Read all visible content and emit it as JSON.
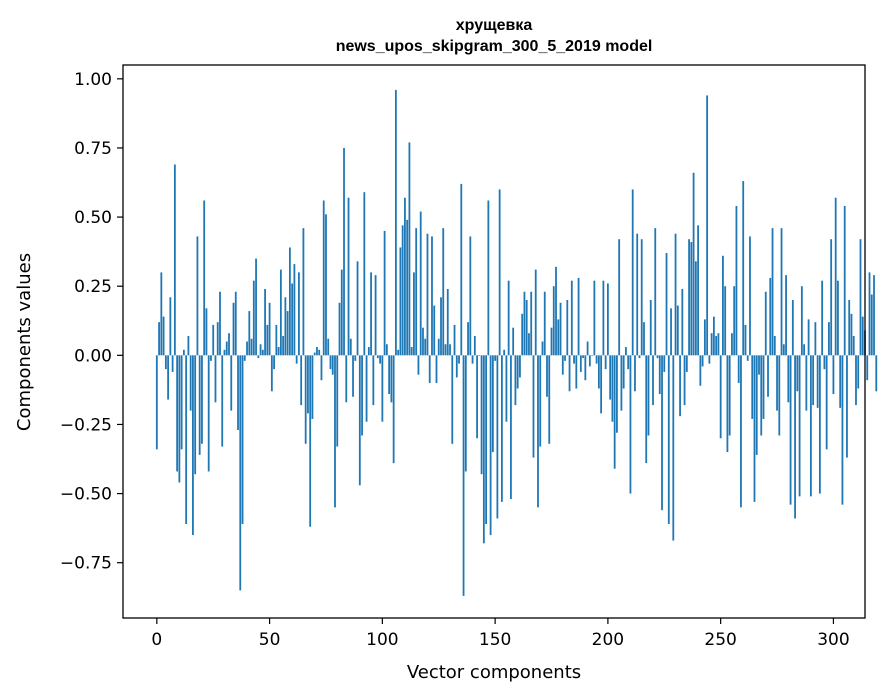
{
  "chart_data": {
    "type": "bar",
    "title": "хрущевка",
    "subtitle": "news_upos_skipgram_300_5_2019 model",
    "xlabel": "Vector components",
    "ylabel": "Components values",
    "xlim": [
      -15,
      314
    ],
    "ylim": [
      -0.95,
      1.05
    ],
    "x_ticks": [
      0,
      50,
      100,
      150,
      200,
      250,
      300
    ],
    "x_tick_labels": [
      "0",
      "50",
      "100",
      "150",
      "200",
      "250",
      "300"
    ],
    "y_ticks": [
      -0.75,
      -0.5,
      -0.25,
      0.0,
      0.25,
      0.5,
      0.75,
      1.0
    ],
    "y_tick_labels": [
      "−0.75",
      "−0.50",
      "−0.25",
      "0.00",
      "0.25",
      "0.50",
      "0.75",
      "1.00"
    ],
    "series": [
      {
        "name": "components",
        "color": "#1f77b4",
        "values": [
          -0.34,
          0.12,
          0.3,
          0.14,
          -0.05,
          -0.16,
          0.21,
          -0.06,
          0.69,
          -0.42,
          -0.46,
          -0.34,
          0.02,
          -0.61,
          0.07,
          -0.2,
          -0.65,
          -0.43,
          0.43,
          -0.36,
          -0.32,
          0.56,
          0.17,
          -0.42,
          -0.02,
          0.11,
          -0.17,
          0.12,
          0.23,
          -0.33,
          0.02,
          0.05,
          0.08,
          -0.2,
          0.19,
          0.23,
          -0.27,
          -0.85,
          -0.61,
          -0.02,
          0.05,
          0.16,
          0.06,
          0.27,
          0.35,
          -0.01,
          0.04,
          0.02,
          0.24,
          0.11,
          0.19,
          -0.13,
          -0.05,
          0.11,
          0.03,
          0.31,
          0.07,
          0.21,
          0.16,
          0.39,
          0.26,
          0.33,
          -0.03,
          0.3,
          -0.18,
          0.46,
          -0.32,
          -0.21,
          -0.62,
          -0.23,
          0.01,
          0.03,
          0.02,
          -0.09,
          0.56,
          0.51,
          0.06,
          -0.05,
          -0.07,
          -0.55,
          -0.33,
          0.19,
          0.31,
          0.75,
          -0.17,
          0.57,
          0.06,
          -0.15,
          -0.02,
          0.34,
          -0.47,
          -0.29,
          0.59,
          -0.24,
          0.03,
          0.3,
          -0.18,
          0.29,
          -0.01,
          -0.03,
          -0.24,
          0.45,
          0.04,
          -0.14,
          -0.17,
          -0.39,
          0.96,
          0.02,
          0.39,
          0.47,
          0.57,
          0.49,
          0.77,
          0.03,
          0.3,
          0.46,
          -0.07,
          0.52,
          0.1,
          0.06,
          0.44,
          -0.1,
          0.43,
          0.18,
          -0.1,
          0.06,
          0.21,
          0.46,
          0.04,
          0.24,
          0.04,
          -0.32,
          0.11,
          -0.08,
          -0.03,
          0.62,
          -0.87,
          -0.42,
          0.12,
          0.43,
          -0.03,
          0.07,
          -0.3,
          0.0,
          -0.43,
          -0.68,
          -0.61,
          0.56,
          -0.65,
          -0.35,
          -0.02,
          -0.59,
          0.6,
          -0.53,
          0.02,
          -0.24,
          0.27,
          -0.52,
          0.1,
          -0.18,
          -0.12,
          -0.08,
          0.15,
          0.23,
          0.2,
          0.08,
          0.23,
          -0.37,
          0.31,
          -0.55,
          -0.33,
          0.05,
          0.23,
          -0.15,
          -0.32,
          0.1,
          0.25,
          0.32,
          0.13,
          0.19,
          -0.07,
          -0.02,
          0.2,
          -0.13,
          0.27,
          -0.03,
          -0.12,
          0.28,
          -0.06,
          -0.01,
          -0.09,
          0.05,
          -0.04,
          0.0,
          0.27,
          -0.03,
          -0.12,
          -0.21,
          0.27,
          -0.05,
          0.26,
          -0.16,
          -0.24,
          -0.41,
          -0.28,
          0.42,
          -0.2,
          -0.12,
          0.03,
          -0.05,
          -0.5,
          0.6,
          -0.13,
          0.44,
          -0.01,
          0.42,
          0.12,
          -0.39,
          -0.29,
          0.2,
          -0.18,
          0.46,
          -0.01,
          -0.14,
          -0.56,
          -0.06,
          0.37,
          -0.61,
          0.17,
          -0.67,
          0.44,
          0.18,
          -0.22,
          0.24,
          -0.18,
          -0.06,
          0.42,
          0.41,
          0.66,
          0.34,
          0.47,
          -0.11,
          -0.04,
          0.13,
          0.94,
          -0.03,
          0.08,
          0.14,
          0.07,
          0.08,
          -0.3,
          0.36,
          0.25,
          -0.35,
          -0.29,
          0.08,
          0.25,
          0.54,
          -0.1,
          -0.55,
          0.63,
          0.11,
          -0.02,
          0.43,
          -0.23,
          -0.53,
          -0.36,
          -0.07,
          -0.29,
          -0.23,
          0.23,
          -0.15,
          0.28,
          0.46,
          0.07,
          -0.2,
          -0.29,
          0.46,
          0.04,
          0.29,
          -0.17,
          -0.54,
          0.2,
          -0.59,
          -0.13,
          -0.51,
          0.25,
          0.04,
          -0.2,
          0.13,
          -0.51,
          -0.18,
          0.12,
          -0.19,
          -0.5,
          0.27,
          -0.05,
          -0.34,
          0.12,
          0.42,
          -0.14,
          0.57,
          0.27,
          -0.19,
          -0.54,
          0.54,
          -0.37,
          0.2,
          0.15,
          0.07,
          -0.18,
          -0.12,
          0.42,
          0.14,
          0.09,
          -0.09,
          0.3,
          0.22,
          0.29,
          -0.13
        ]
      }
    ],
    "grid": false,
    "legend": "none"
  }
}
